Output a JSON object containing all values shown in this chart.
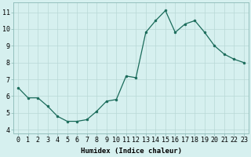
{
  "x": [
    0,
    1,
    2,
    3,
    4,
    5,
    6,
    7,
    8,
    9,
    10,
    11,
    12,
    13,
    14,
    15,
    16,
    17,
    18,
    19,
    20,
    21,
    22,
    23
  ],
  "y": [
    6.5,
    5.9,
    5.9,
    5.4,
    4.8,
    4.5,
    4.5,
    4.6,
    5.1,
    5.7,
    5.8,
    7.2,
    7.1,
    9.8,
    10.5,
    11.1,
    9.8,
    10.3,
    10.5,
    9.8,
    9.0,
    8.5,
    8.2,
    8.0
  ],
  "line_color": "#1a6b5a",
  "marker": "o",
  "marker_size": 2,
  "bg_color": "#d6f0ef",
  "grid_color": "#b8d8d6",
  "xlabel": "Humidex (Indice chaleur)",
  "xlim": [
    -0.5,
    23.5
  ],
  "ylim": [
    3.8,
    11.6
  ],
  "xticks": [
    0,
    1,
    2,
    3,
    4,
    5,
    6,
    7,
    8,
    9,
    10,
    11,
    12,
    13,
    14,
    15,
    16,
    17,
    18,
    19,
    20,
    21,
    22,
    23
  ],
  "yticks": [
    4,
    5,
    6,
    7,
    8,
    9,
    10,
    11
  ],
  "xlabel_fontsize": 6.5,
  "tick_fontsize": 6.0
}
